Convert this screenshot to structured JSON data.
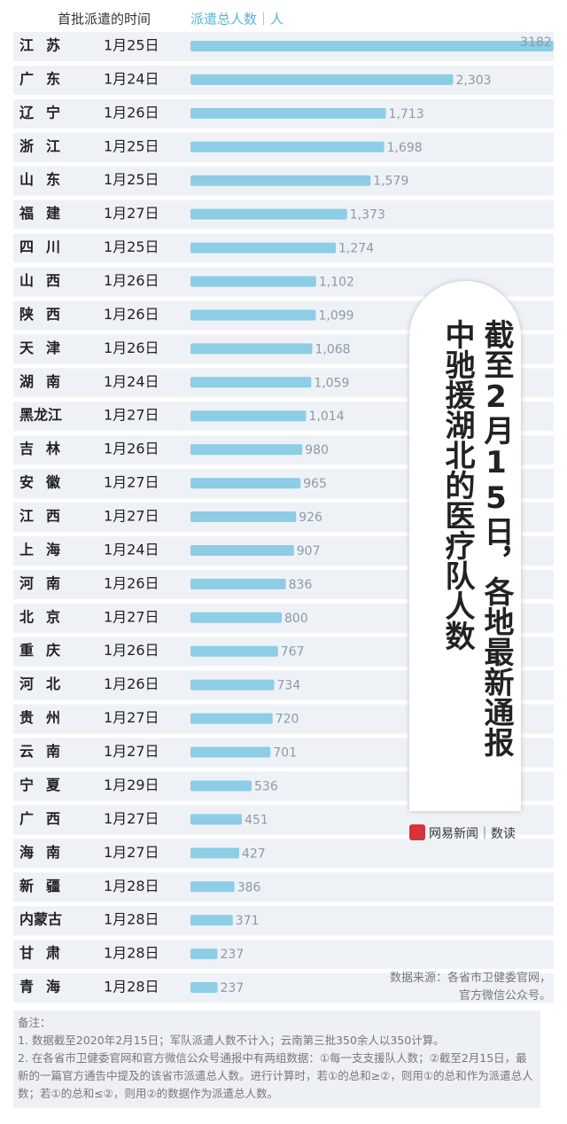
{
  "chart_data": {
    "type": "bar",
    "orientation": "horizontal",
    "title": "截至2月15日，各地最新通报中驰援湖北的医疗队人数",
    "column_headers": [
      "首批派遣的时间",
      "派遣总人数｜人"
    ],
    "categories": [
      "江苏",
      "广东",
      "辽宁",
      "浙江",
      "山东",
      "福建",
      "四川",
      "山西",
      "陕西",
      "天津",
      "湖南",
      "黑龙江",
      "吉林",
      "安徽",
      "江西",
      "上海",
      "河南",
      "北京",
      "重庆",
      "河北",
      "贵州",
      "云南",
      "宁夏",
      "广西",
      "海南",
      "新疆",
      "内蒙古",
      "甘肃",
      "青海"
    ],
    "dates": [
      "1月25日",
      "1月24日",
      "1月26日",
      "1月25日",
      "1月25日",
      "1月27日",
      "1月25日",
      "1月26日",
      "1月26日",
      "1月26日",
      "1月24日",
      "1月27日",
      "1月26日",
      "1月27日",
      "1月27日",
      "1月24日",
      "1月26日",
      "1月27日",
      "1月26日",
      "1月26日",
      "1月27日",
      "1月27日",
      "1月29日",
      "1月27日",
      "1月27日",
      "1月28日",
      "1月28日",
      "1月28日",
      "1月28日"
    ],
    "values": [
      3182,
      2303,
      1713,
      1698,
      1579,
      1373,
      1274,
      1102,
      1099,
      1068,
      1059,
      1014,
      980,
      965,
      926,
      907,
      836,
      800,
      767,
      734,
      720,
      701,
      536,
      451,
      427,
      386,
      371,
      237,
      237
    ],
    "value_labels": [
      "3182",
      "2,303",
      "1,713",
      "1,698",
      "1,579",
      "1,373",
      "1,274",
      "1,102",
      "1,099",
      "1,068",
      "1,059",
      "1,014",
      "980",
      "965",
      "926",
      "907",
      "836",
      "800",
      "767",
      "734",
      "720",
      "701",
      "536",
      "451",
      "427",
      "386",
      "371",
      "237",
      "237"
    ],
    "color": "#8dcde6",
    "xlim": [
      0,
      3200
    ],
    "brand": "网易新闻｜数读",
    "source": [
      "数据来源：各省市卫健委官网，",
      "官方微信公众号。"
    ],
    "notes": [
      "备注：",
      "1. 数据截至2020年2月15日；军队派遣人数不计入；云南第三批350余人以350计算。",
      "2. 在各省市卫健委官网和官方微信公众号通报中有两组数据：①每一支支援队人数；②截至2月15日，最新的一篇官方通告中提及的该省市派遣总人数。进行计算时，若①的总和≥②，则用①的总和作为派遣总人数；若①的总和≤②，则用②的数据作为派遣总人数。"
    ]
  }
}
